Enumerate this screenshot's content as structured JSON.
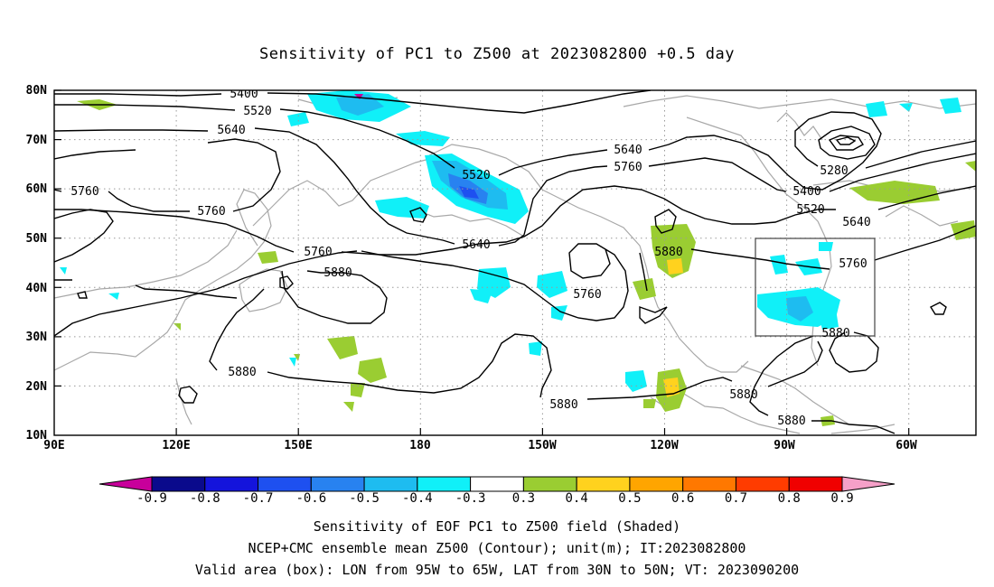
{
  "title": "Sensitivity of PC1 to Z500 at 2023082800 +0.5 day",
  "lat_labels": [
    "80N",
    "70N",
    "60N",
    "50N",
    "40N",
    "30N",
    "20N",
    "10N"
  ],
  "lon_labels": [
    "90E",
    "120E",
    "150E",
    "180",
    "150W",
    "120W",
    "90W",
    "60W"
  ],
  "contour_labels": {
    "c5400a": "5400",
    "c5520a": "5520",
    "c5640a": "5640",
    "c5760a": "5760",
    "c5760b": "5760",
    "c5520b": "5520",
    "c5640b": "5640",
    "c5760c": "5760",
    "c5880a": "5880",
    "c5640c": "5640",
    "c5760d": "5760",
    "c5880b": "5880",
    "c5640d": "5640",
    "c5760e": "5760",
    "c5880c": "5880",
    "c5880d": "5880",
    "c5280": "5280",
    "c5400b": "5400",
    "c5520c": "5520",
    "c5640e": "5640",
    "c5760f": "5760",
    "c5880e": "5880",
    "c5880f": "5880"
  },
  "colorbar": {
    "labels": [
      "-0.9",
      "-0.8",
      "-0.7",
      "-0.6",
      "-0.5",
      "-0.4",
      "-0.3",
      "0.3",
      "0.4",
      "0.5",
      "0.6",
      "0.7",
      "0.8",
      "0.9"
    ],
    "colors": [
      "#0a0a8c",
      "#1414dc",
      "#1e50f0",
      "#2882f0",
      "#1ebcf0",
      "#10f0f8",
      "#ffffff",
      "#9acd32",
      "#ffd21e",
      "#ffa500",
      "#ff7800",
      "#ff3c00",
      "#f00000"
    ],
    "low_arrow_color": "#c8009b",
    "high_arrow_color": "#f5a0c8"
  },
  "footer": {
    "line1": "Sensitivity of EOF PC1 to Z500 field (Shaded)",
    "line2": "NCEP+CMC ensemble mean Z500 (Contour); unit(m); IT:2023082800",
    "line3": "Valid area (box): LON from 95W to 65W, LAT from 30N to 50N; VT: 2023090200"
  }
}
